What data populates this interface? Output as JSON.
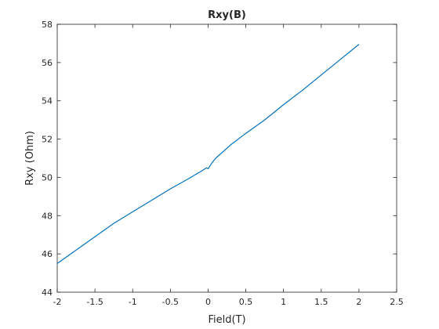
{
  "chart_data": {
    "type": "line",
    "title": "Rxy(B)",
    "xlabel": "Field(T)",
    "ylabel": "Rxy (Ohm)",
    "xlim": [
      -2,
      2.5
    ],
    "ylim": [
      44,
      58
    ],
    "xticks": [
      -2,
      -1.5,
      -1,
      -0.5,
      0,
      0.5,
      1,
      1.5,
      2,
      2.5
    ],
    "xtick_labels": [
      "-2",
      "-1.5",
      "-1",
      "-0.5",
      "0",
      "0.5",
      "1",
      "1.5",
      "2",
      "2.5"
    ],
    "yticks": [
      44,
      46,
      48,
      50,
      52,
      54,
      56,
      58
    ],
    "ytick_labels": [
      "44",
      "46",
      "48",
      "50",
      "52",
      "54",
      "56",
      "58"
    ],
    "grid": false,
    "line_color": "#0072bd",
    "series": [
      {
        "x": [
          -2.0,
          -1.75,
          -1.5,
          -1.25,
          -1.0,
          -0.75,
          -0.5,
          -0.25,
          -0.1,
          -0.02,
          0.0,
          0.05,
          0.1,
          0.2,
          0.3,
          0.5,
          0.75,
          1.0,
          1.25,
          1.5,
          1.75,
          2.0
        ],
        "y": [
          45.5,
          46.2,
          46.9,
          47.6,
          48.2,
          48.8,
          49.4,
          49.95,
          50.3,
          50.5,
          50.45,
          50.75,
          51.0,
          51.35,
          51.7,
          52.3,
          53.0,
          53.8,
          54.55,
          55.35,
          56.15,
          56.95
        ]
      }
    ]
  }
}
